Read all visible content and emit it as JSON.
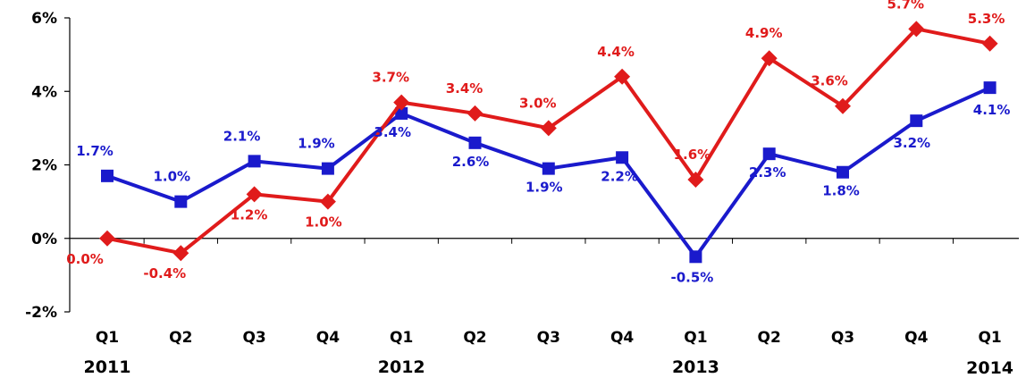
{
  "chart_data": {
    "type": "line",
    "title": "",
    "xlabel": "",
    "ylabel": "",
    "ylim": [
      -2,
      6
    ],
    "y_ticks": [
      -2,
      0,
      2,
      4,
      6
    ],
    "y_tick_labels": [
      "-2%",
      "0%",
      "2%",
      "4%",
      "6%"
    ],
    "categories": [
      "Q1",
      "Q2",
      "Q3",
      "Q4",
      "Q1",
      "Q2",
      "Q3",
      "Q4",
      "Q1",
      "Q2",
      "Q3",
      "Q4",
      "Q1"
    ],
    "year_labels": [
      {
        "label": "2011",
        "index": 0
      },
      {
        "label": "2012",
        "index": 4
      },
      {
        "label": "2013",
        "index": 8
      },
      {
        "label": "2014",
        "index": 12
      }
    ],
    "grid": false,
    "legend": "none",
    "series": [
      {
        "color": "#1a1acc",
        "marker": "square",
        "values": [
          1.7,
          1.0,
          2.1,
          1.9,
          3.4,
          2.6,
          1.9,
          2.2,
          -0.5,
          2.3,
          1.8,
          3.2,
          4.1
        ],
        "labels": [
          "1.7%",
          "1.0%",
          "2.1%",
          "1.9%",
          "3.4%",
          "2.6%",
          "1.9%",
          "2.2%",
          "-0.5%",
          "2.3%",
          "1.8%",
          "3.2%",
          "4.1%"
        ]
      },
      {
        "color": "#e01b1b",
        "marker": "diamond",
        "values": [
          0.0,
          -0.4,
          1.2,
          1.0,
          3.7,
          3.4,
          3.0,
          4.4,
          1.6,
          4.9,
          3.6,
          5.7,
          5.3
        ],
        "labels": [
          "0.0%",
          "-0.4%",
          "1.2%",
          "1.0%",
          "3.7%",
          "3.4%",
          "3.0%",
          "4.4%",
          "1.6%",
          "4.9%",
          "3.6%",
          "5.7%",
          "5.3%"
        ]
      }
    ]
  }
}
